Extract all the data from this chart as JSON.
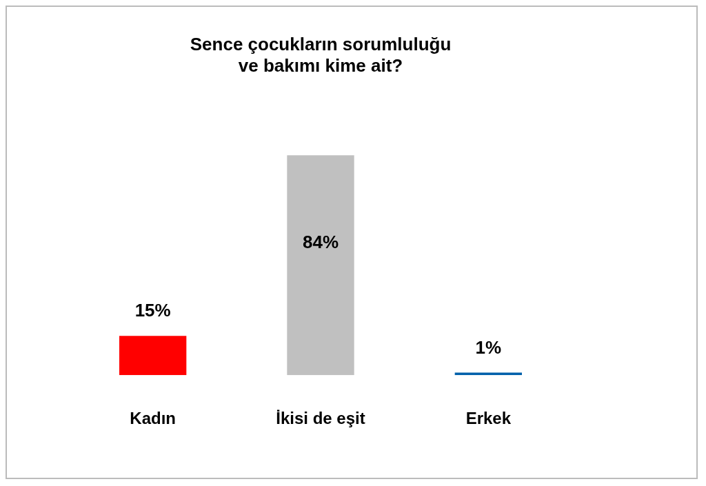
{
  "chart_data": {
    "type": "bar",
    "title": "Sence çocukların sorumluluğu\nve bakımı kime ait?",
    "categories": [
      "Kadın",
      "İkisi de eşit",
      "Erkek"
    ],
    "values": [
      15,
      84,
      1
    ],
    "colors": [
      "#ff0000",
      "#c0c0c0",
      "#0060aa"
    ],
    "value_labels": [
      "15%",
      "84%",
      "1%"
    ],
    "grid": false,
    "legend": false
  }
}
